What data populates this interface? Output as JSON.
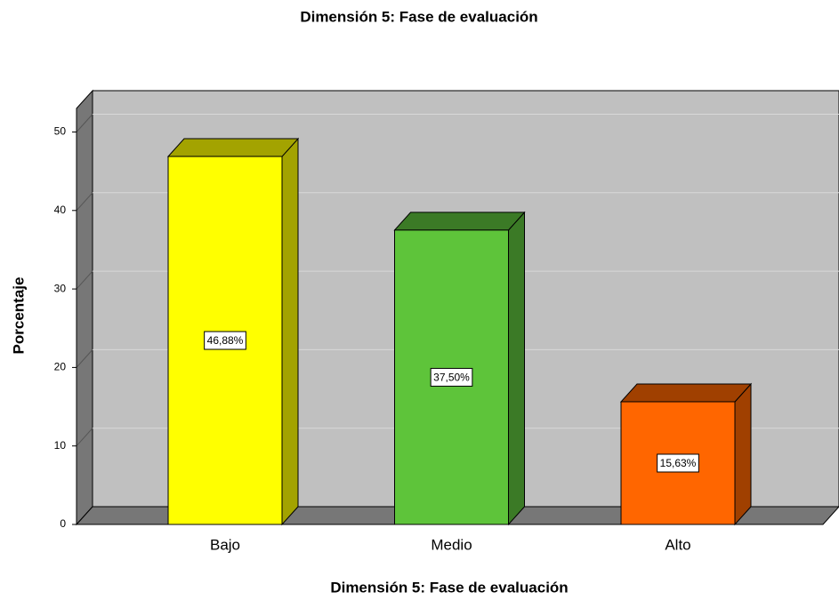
{
  "chart_data": {
    "type": "bar3d",
    "title": "Dimensión 5: Fase de evaluación",
    "x_label": "Dimensión 5: Fase de evaluación",
    "y_label": "Porcentaje",
    "categories": [
      "Bajo",
      "Medio",
      "Alto"
    ],
    "values": [
      46.88,
      37.5,
      15.63
    ],
    "value_labels": [
      "46,88%",
      "37,50%",
      "15,63%"
    ],
    "colors": [
      "#ffff00",
      "#5ec43a",
      "#ff6600"
    ],
    "side_colors": [
      "#a3a300",
      "#3b7a26",
      "#a04000"
    ],
    "ylim": [
      0,
      53
    ],
    "yticks": [
      0,
      10,
      20,
      30,
      40,
      50
    ],
    "grid": true
  }
}
